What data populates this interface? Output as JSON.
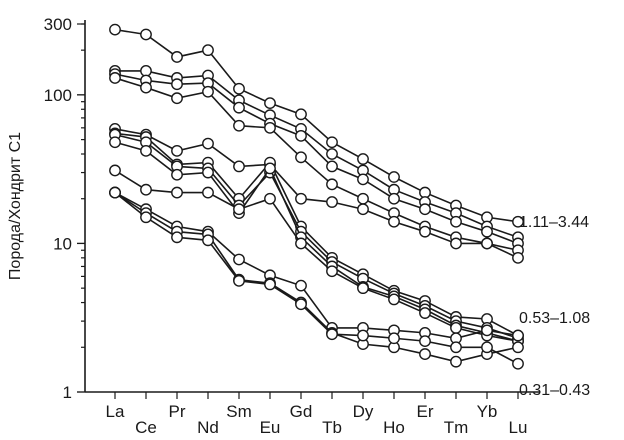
{
  "chart_data": {
    "type": "line",
    "ylabel": "Порода/Хондрит C1",
    "xlabel": "",
    "yscale": "log",
    "ylim": [
      1,
      300
    ],
    "yticks": [
      {
        "value": 1,
        "label": "1"
      },
      {
        "value": 10,
        "label": "10"
      },
      {
        "value": 100,
        "label": "100"
      },
      {
        "value": 300,
        "label": "300"
      }
    ],
    "categories": [
      "La",
      "Ce",
      "Pr",
      "Nd",
      "Sm",
      "Eu",
      "Gd",
      "Tb",
      "Dy",
      "Ho",
      "Er",
      "Tm",
      "Yb",
      "Lu"
    ],
    "grid": false,
    "legend": "none",
    "line_color": "#1a1a1a",
    "marker": "open-circle",
    "annotations": [
      {
        "text": "1.11–3.44",
        "y": 14.2
      },
      {
        "text": "0.53–1.08",
        "y": 3.2
      },
      {
        "text": "0.31–0.43",
        "y": 1.05
      }
    ],
    "series": [
      {
        "values": [
          275,
          255,
          180,
          200,
          110,
          88,
          74,
          48,
          37,
          28,
          22,
          18,
          15,
          14
        ]
      },
      {
        "values": [
          145,
          145,
          130,
          135,
          92,
          73,
          59,
          40,
          31,
          23,
          19,
          16,
          13,
          11
        ]
      },
      {
        "values": [
          138,
          125,
          118,
          120,
          82,
          64,
          53,
          33,
          27,
          20,
          17,
          14,
          12,
          10
        ]
      },
      {
        "values": [
          130,
          112,
          95,
          105,
          62,
          60,
          38,
          25,
          20,
          16,
          13,
          11,
          10,
          9
        ]
      },
      {
        "values": [
          59,
          54,
          42,
          47,
          33,
          34,
          20,
          19,
          17,
          14,
          12,
          10,
          10,
          8
        ]
      },
      {
        "values": [
          55,
          52,
          34,
          35,
          20,
          35,
          13,
          8,
          6.2,
          4.8,
          4.1,
          3.2,
          3.1,
          2.4
        ]
      },
      {
        "values": [
          54,
          48,
          33,
          32,
          18,
          30,
          12,
          7.5,
          5.8,
          4.6,
          3.8,
          3.0,
          2.7,
          2.3
        ]
      },
      {
        "values": [
          48,
          42,
          29,
          30,
          16,
          32,
          11,
          7,
          5.1,
          4.4,
          3.6,
          2.8,
          2.5,
          2.2
        ]
      },
      {
        "values": [
          31,
          23,
          22,
          22,
          17,
          20,
          10,
          6.5,
          5.0,
          4.2,
          3.4,
          2.7,
          2.4,
          2.2
        ]
      },
      {
        "values": [
          22,
          17,
          13,
          12,
          7.8,
          6.1,
          5.2,
          2.7,
          2.7,
          2.6,
          2.5,
          2.3,
          2.6,
          2.4
        ]
      },
      {
        "values": [
          22,
          16,
          12,
          11.5,
          5.7,
          5.4,
          4.0,
          2.5,
          2.1,
          2.0,
          1.8,
          1.6,
          1.8,
          2.0
        ]
      },
      {
        "values": [
          22,
          15,
          11,
          10.5,
          5.6,
          5.3,
          3.9,
          2.45,
          2.4,
          2.3,
          2.2,
          2.0,
          2.0,
          1.55
        ]
      }
    ]
  }
}
